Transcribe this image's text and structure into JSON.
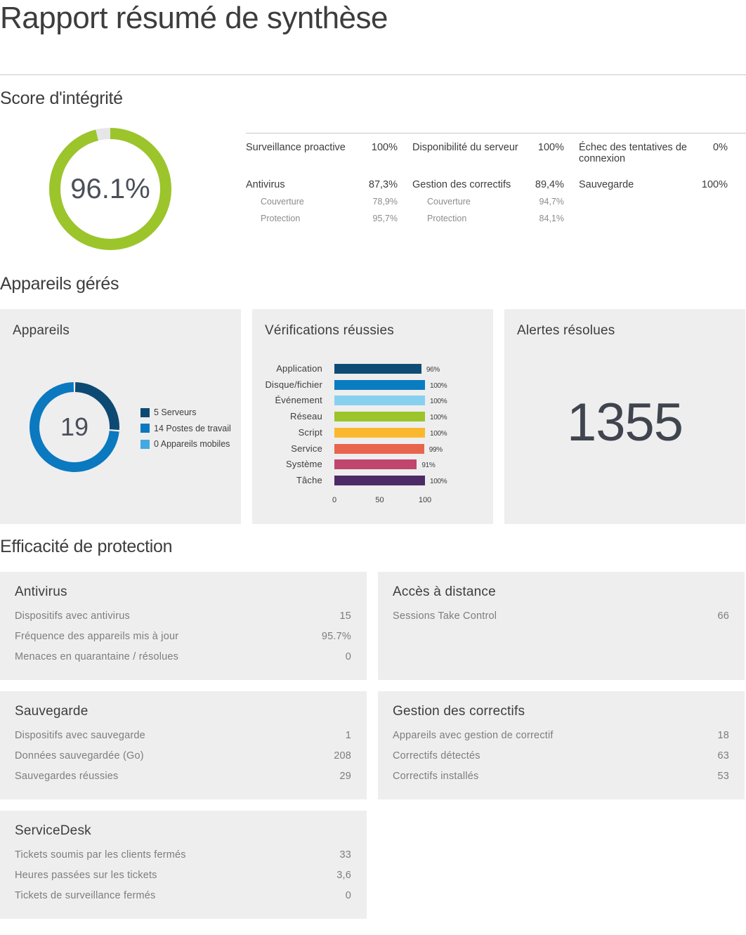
{
  "header": {
    "title": "Rapport résumé de synthèse"
  },
  "integrity": {
    "heading": "Score d'intégrité",
    "score": "96.1%",
    "score_fraction": 0.961,
    "colors": {
      "ring": "#9bc52b",
      "ring_track": "#e6e6e6"
    },
    "columns": [
      [
        {
          "label": "Surveillance proactive",
          "value": "100%",
          "subs": []
        },
        {
          "label": "Antivirus",
          "value": "87,3%",
          "subs": [
            {
              "label": "Couverture",
              "value": "78,9%"
            },
            {
              "label": "Protection",
              "value": "95,7%"
            }
          ]
        }
      ],
      [
        {
          "label": "Disponibilité du serveur",
          "value": "100%",
          "subs": []
        },
        {
          "label": "Gestion des correctifs",
          "value": "89,4%",
          "subs": [
            {
              "label": "Couverture",
              "value": "94,7%"
            },
            {
              "label": "Protection",
              "value": "84,1%"
            }
          ]
        }
      ],
      [
        {
          "label": "Échec des tentatives de connexion",
          "value": "0%",
          "subs": []
        },
        {
          "label": "Sauvegarde",
          "value": "100%",
          "subs": []
        }
      ]
    ]
  },
  "managed": {
    "heading": "Appareils gérés",
    "devices": {
      "title": "Appareils",
      "total": "19",
      "segments": [
        {
          "label": "5 Serveurs",
          "count": 5,
          "color": "#0d4a73"
        },
        {
          "label": "14 Postes de travail",
          "count": 14,
          "color": "#0a79c0"
        },
        {
          "label": "0 Appareils mobiles",
          "count": 0,
          "color": "#45a8e0"
        }
      ]
    },
    "checks": {
      "title": "Vérifications réussies",
      "chart_data": {
        "type": "bar",
        "orientation": "horizontal",
        "categories": [
          "Application",
          "Disque/fichier",
          "Événement",
          "Réseau",
          "Script",
          "Service",
          "Système",
          "Tâche"
        ],
        "values": [
          96,
          100,
          100,
          100,
          100,
          99,
          91,
          100
        ],
        "value_labels": [
          "96%",
          "100%",
          "100%",
          "100%",
          "100%",
          "99%",
          "91%",
          "100%"
        ],
        "colors": [
          "#0f4c75",
          "#0a7cc1",
          "#88d0f0",
          "#9bc52b",
          "#fbb82e",
          "#e8654d",
          "#c0466e",
          "#4d2b66"
        ],
        "xlim": [
          0,
          100
        ],
        "xticks": [
          "0",
          "50",
          "100"
        ]
      }
    },
    "alerts": {
      "title": "Alertes résolues",
      "value": "1355"
    }
  },
  "protection": {
    "heading": "Efficacité de protection",
    "cards": [
      {
        "title": "Antivirus",
        "rows": [
          {
            "label": "Dispositifs avec antivirus",
            "value": "15"
          },
          {
            "label": "Fréquence des appareils mis à jour",
            "value": "95.7%"
          },
          {
            "label": "Menaces en quarantaine / résolues",
            "value": "0"
          }
        ]
      },
      {
        "title": "Accès à distance",
        "rows": [
          {
            "label": "Sessions Take Control",
            "value": "66"
          }
        ]
      },
      {
        "title": "Sauvegarde",
        "rows": [
          {
            "label": "Dispositifs avec sauvegarde",
            "value": "1"
          },
          {
            "label": "Données sauvegardée (Go)",
            "value": "208"
          },
          {
            "label": "Sauvegardes réussies",
            "value": "29"
          }
        ]
      },
      {
        "title": "Gestion des correctifs",
        "rows": [
          {
            "label": "Appareils avec gestion de correctif",
            "value": "18"
          },
          {
            "label": "Correctifs détectés",
            "value": "63"
          },
          {
            "label": "Correctifs installés",
            "value": "53"
          }
        ]
      },
      {
        "title": "ServiceDesk",
        "rows": [
          {
            "label": "Tickets soumis par les clients fermés",
            "value": "33"
          },
          {
            "label": "Heures passées sur les tickets",
            "value": "3,6"
          },
          {
            "label": "Tickets de surveillance fermés",
            "value": "0"
          }
        ]
      }
    ]
  }
}
